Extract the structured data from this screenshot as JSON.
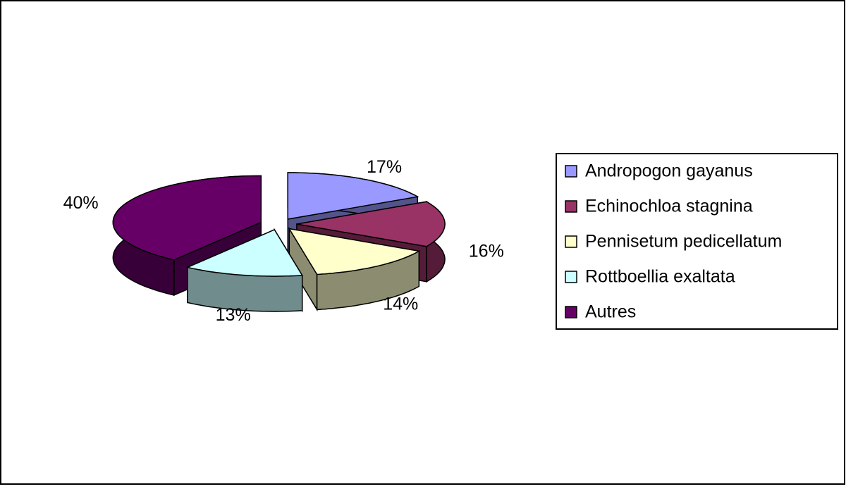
{
  "chart_data": {
    "type": "pie3d",
    "categories": [
      "Andropogon gayanus",
      "Echinochloa stagnina",
      "Pennisetum pedicellatum",
      "Rottboellia exaltata",
      "Autres"
    ],
    "values": [
      17,
      16,
      14,
      13,
      40
    ],
    "value_labels": [
      "17%",
      "16%",
      "14%",
      "13%",
      "40%"
    ],
    "colors": [
      "#9999ff",
      "#993366",
      "#ffffcc",
      "#ccffff",
      "#660066"
    ],
    "legend": "right"
  }
}
